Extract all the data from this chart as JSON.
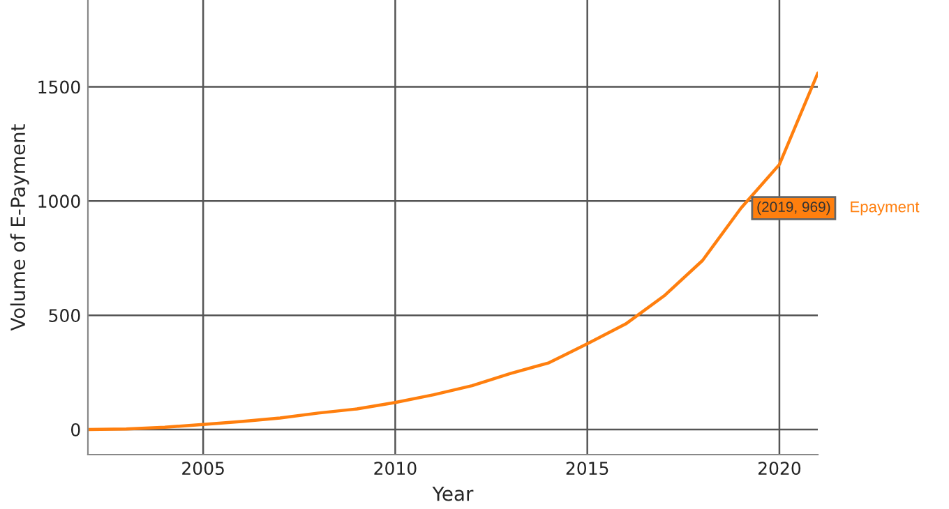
{
  "chart_data": {
    "type": "line",
    "xlabel": "Year",
    "ylabel": "Volume of E-Payment",
    "x": [
      2002,
      2003,
      2004,
      2005,
      2006,
      2007,
      2008,
      2009,
      2010,
      2011,
      2012,
      2013,
      2014,
      2015,
      2016,
      2017,
      2018,
      2019,
      2020,
      2021
    ],
    "series": [
      {
        "name": "Epayment",
        "color": "#ff7f0e",
        "values": [
          0,
          2,
          10,
          22,
          35,
          50,
          72,
          90,
          118,
          152,
          192,
          245,
          292,
          375,
          462,
          585,
          740,
          969,
          1160,
          1560
        ]
      }
    ],
    "xlim": [
      2002,
      2021
    ],
    "ylim": [
      -110,
      1880
    ],
    "xticks": [
      2005,
      2010,
      2015,
      2020
    ],
    "yticks": [
      0,
      500,
      1000,
      1500
    ],
    "grid": true,
    "marker": "none",
    "line_style": "solid",
    "annotations": [
      {
        "text": "(2019, 969)",
        "x": 2019,
        "y": 969
      }
    ]
  }
}
